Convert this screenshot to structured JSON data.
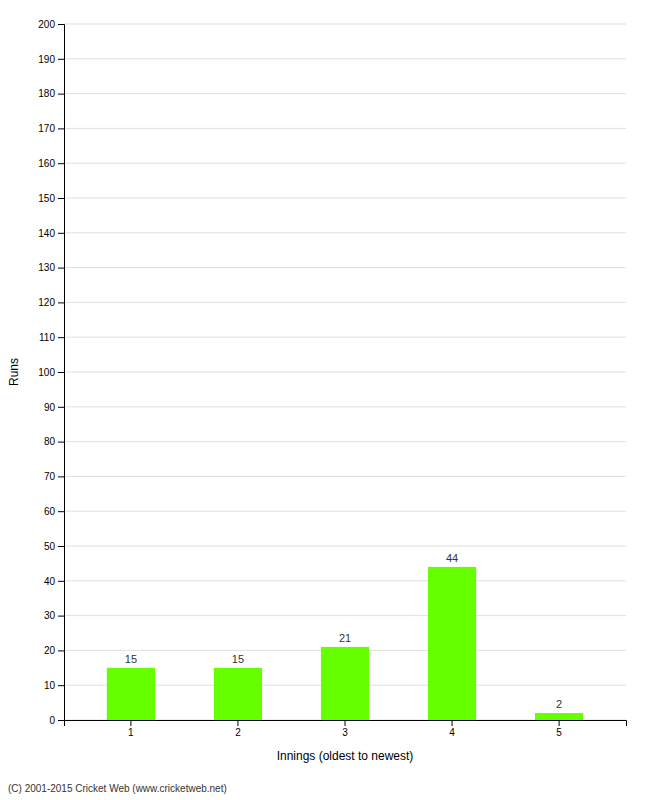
{
  "chart_data": {
    "type": "bar",
    "categories": [
      "1",
      "2",
      "3",
      "4",
      "5"
    ],
    "values": [
      15,
      15,
      21,
      44,
      2
    ],
    "color": "#66ff00",
    "xlabel": "Innings (oldest to newest)",
    "ylabel": "Runs",
    "ylim": [
      0,
      200
    ],
    "yticks": [
      0,
      10,
      20,
      30,
      40,
      50,
      60,
      70,
      80,
      90,
      100,
      110,
      120,
      130,
      140,
      150,
      160,
      170,
      180,
      190,
      200
    ],
    "grid": true,
    "data_labels": true,
    "footer": "(C) 2001-2015 Cricket Web (www.cricketweb.net)"
  }
}
